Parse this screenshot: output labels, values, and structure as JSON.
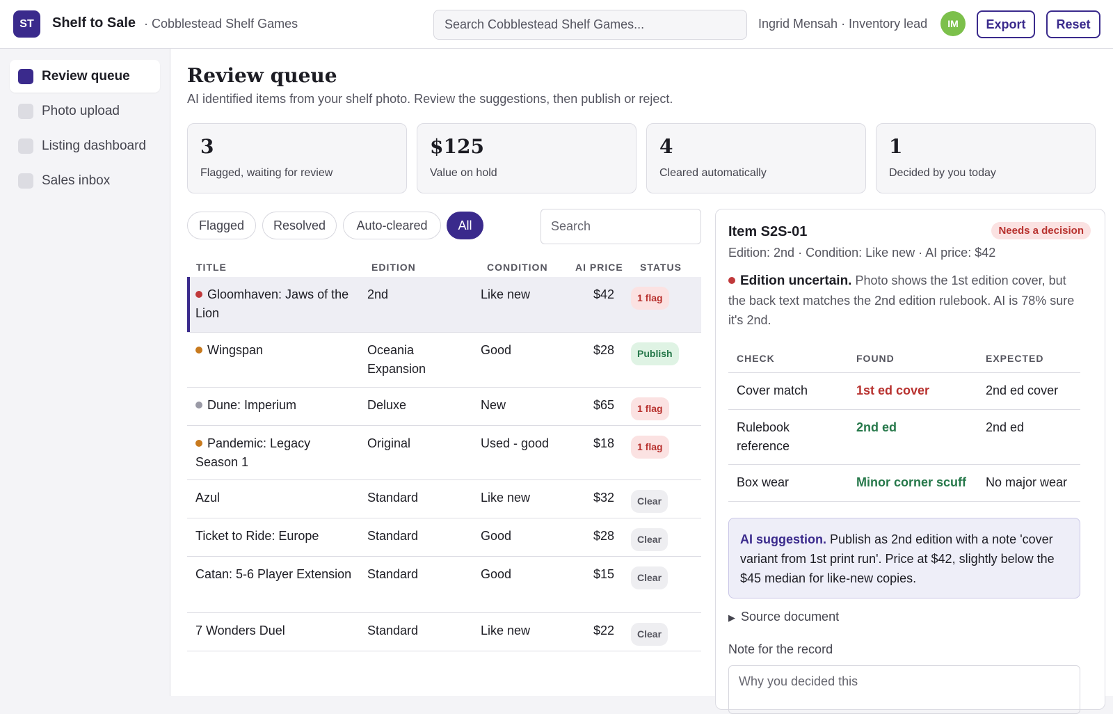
{
  "header": {
    "logo": "ST",
    "app_name": "Shelf to Sale",
    "store": "· Cobblestead Shelf Games",
    "search_placeholder": "Search Cobblestead Shelf Games...",
    "user": "Ingrid Mensah · Inventory lead",
    "avatar": "IM",
    "export_label": "Export",
    "reset_label": "Reset"
  },
  "sidebar": {
    "items": [
      {
        "label": "Review queue",
        "active": true
      },
      {
        "label": "Photo upload",
        "active": false
      },
      {
        "label": "Listing dashboard",
        "active": false
      },
      {
        "label": "Sales inbox",
        "active": false
      }
    ]
  },
  "page": {
    "title": "Review queue",
    "subtitle": "AI identified items from your shelf photo. Review the suggestions, then publish or reject."
  },
  "stats": [
    {
      "value": "3",
      "label": "Flagged, waiting for review"
    },
    {
      "value": "$125",
      "label": "Value on hold"
    },
    {
      "value": "4",
      "label": "Cleared automatically"
    },
    {
      "value": "1",
      "label": "Decided by you today"
    }
  ],
  "filters": [
    {
      "label": "Flagged",
      "active": false
    },
    {
      "label": "Resolved",
      "active": false
    },
    {
      "label": "Auto-cleared",
      "active": false
    },
    {
      "label": "All",
      "active": true
    }
  ],
  "table_search_placeholder": "Search",
  "table": {
    "headers": [
      "TITLE",
      "EDITION",
      "CONDITION",
      "AI PRICE",
      "STATUS"
    ],
    "rows": [
      {
        "title": "Gloomhaven: Jaws of the Lion",
        "edition": "2nd",
        "condition": "Like new",
        "price": "$42",
        "status": "1 flag",
        "kind": "flag",
        "dot": "#c0393b"
      },
      {
        "title": "Wingspan",
        "edition": "Oceania Expansion",
        "condition": "Good",
        "price": "$28",
        "status": "Publish",
        "kind": "pub",
        "dot": "#c87a1e"
      },
      {
        "title": "Dune: Imperium",
        "edition": "Deluxe",
        "condition": "New",
        "price": "$65",
        "status": "1 flag",
        "kind": "flag",
        "dot": "#9a9aa6"
      },
      {
        "title": "Pandemic: Legacy Season 1",
        "edition": "Original",
        "condition": "Used - good",
        "price": "$18",
        "status": "1 flag",
        "kind": "flag",
        "dot": "#c87a1e"
      },
      {
        "title": "Azul",
        "edition": "Standard",
        "condition": "Like new",
        "price": "$32",
        "status": "Clear",
        "kind": "clear",
        "dot": ""
      },
      {
        "title": "Ticket to Ride: Europe",
        "edition": "Standard",
        "condition": "Good",
        "price": "$28",
        "status": "Clear",
        "kind": "clear",
        "dot": ""
      },
      {
        "title": "Catan: 5-6 Player Extension",
        "edition": "Standard",
        "condition": "Good",
        "price": "$15",
        "status": "Clear",
        "kind": "clear",
        "dot": ""
      },
      {
        "title": "7 Wonders Duel",
        "edition": "Standard",
        "condition": "Like new",
        "price": "$22",
        "status": "Clear",
        "kind": "clear",
        "dot": ""
      }
    ]
  },
  "detail": {
    "title": "Item S2S-01",
    "badge": "Needs a decision",
    "meta": "Edition: 2nd · Condition: Like new · AI price: $42",
    "flag_title": "Edition uncertain.",
    "flag_text": " Photo shows the 1st edition cover, but the back text matches the 2nd edition rulebook. AI is 78% sure it's 2nd.",
    "check_headers": [
      "CHECK",
      "FOUND",
      "EXPECTED"
    ],
    "checks": [
      {
        "check": "Cover match",
        "found": "1st ed cover",
        "expected": "2nd ed cover",
        "tone": "red"
      },
      {
        "check": "Rulebook reference",
        "found": "2nd ed",
        "expected": "2nd ed",
        "tone": "green"
      },
      {
        "check": "Box wear",
        "found": "Minor corner scuff",
        "expected": "No major wear",
        "tone": "green"
      }
    ],
    "suggestion_title": "AI suggestion.",
    "suggestion_text": " Publish as 2nd edition with a note 'cover variant from 1st print run'. Price at $42, slightly below the $45 median for like-new copies.",
    "source_label": "Source document",
    "note_label": "Note for the record",
    "note_placeholder": "Why you decided this"
  }
}
